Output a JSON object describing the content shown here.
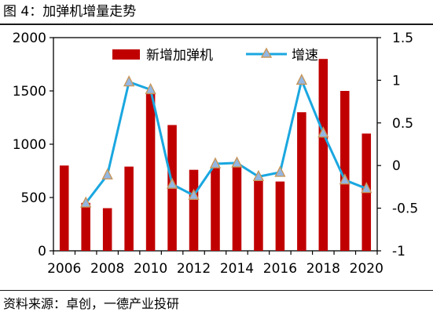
{
  "figure": {
    "title": "图 4：加弹机增量走势",
    "source": "资料来源：卓创，一德产业投研"
  },
  "colors": {
    "bar": "#c00000",
    "line": "#1aa7e0",
    "marker_fill": "#93b7e3",
    "marker_stroke": "#c8965a",
    "axis": "#000000"
  },
  "chart_data": {
    "type": "bar",
    "title": "",
    "xlabel": "",
    "ylabel": "",
    "categories": [
      2006,
      2007,
      2008,
      2009,
      2010,
      2011,
      2012,
      2013,
      2014,
      2015,
      2016,
      2017,
      2018,
      2019,
      2020
    ],
    "x_tick_labels": [
      "2006",
      "2008",
      "2010",
      "2012",
      "2014",
      "2016",
      "2018",
      "2020"
    ],
    "ylim_left": [
      0,
      2000
    ],
    "yticks_left": [
      "0",
      "500",
      "1000",
      "1500",
      "2000"
    ],
    "ylim_right": [
      -1,
      1.5
    ],
    "yticks_right": [
      "-1",
      "-0.5",
      "0",
      "0.5",
      "1",
      "1.5"
    ],
    "grid": false,
    "legend_position": "top",
    "series": [
      {
        "name": "新增加弹机",
        "type": "bar",
        "axis": "left",
        "values": [
          800,
          450,
          400,
          790,
          1480,
          1180,
          760,
          780,
          800,
          680,
          650,
          1300,
          1800,
          1500,
          1100
        ]
      },
      {
        "name": "增速",
        "type": "line",
        "axis": "right",
        "marker": "triangle",
        "values": [
          null,
          -0.44,
          -0.11,
          0.98,
          0.89,
          -0.22,
          -0.35,
          0.02,
          0.03,
          -0.13,
          -0.08,
          1.0,
          0.38,
          -0.17,
          -0.27
        ]
      }
    ]
  }
}
